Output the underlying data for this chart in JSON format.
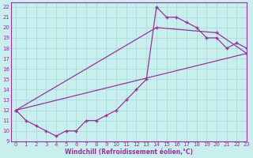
{
  "xlabel": "Windchill (Refroidissement éolien,°C)",
  "bg_color": "#c8eeee",
  "grid_color": "#b0dddd",
  "line_color": "#993399",
  "xlim": [
    -0.5,
    23
  ],
  "ylim": [
    9,
    22.4
  ],
  "xticks": [
    0,
    1,
    2,
    3,
    4,
    5,
    6,
    7,
    8,
    9,
    10,
    11,
    12,
    13,
    14,
    15,
    16,
    17,
    18,
    19,
    20,
    21,
    22,
    23
  ],
  "yticks": [
    9,
    10,
    11,
    12,
    13,
    14,
    15,
    16,
    17,
    18,
    19,
    20,
    21,
    22
  ],
  "curve1_x": [
    0,
    1,
    2,
    3,
    4,
    5,
    6,
    7,
    8,
    9,
    10,
    11,
    12,
    13,
    14,
    15,
    16,
    17,
    18,
    19,
    20,
    21,
    22,
    23
  ],
  "curve1_y": [
    12,
    11,
    10.5,
    10,
    9.5,
    10,
    10,
    11,
    11,
    11.5,
    12,
    13,
    14,
    15,
    22,
    21,
    21,
    20.5,
    20,
    19,
    19,
    18,
    18.5,
    18
  ],
  "line2_x": [
    0,
    23
  ],
  "line2_y": [
    12,
    17.5
  ],
  "line3_x": [
    0,
    14,
    20,
    23
  ],
  "line3_y": [
    12,
    20,
    19.5,
    17.5
  ]
}
